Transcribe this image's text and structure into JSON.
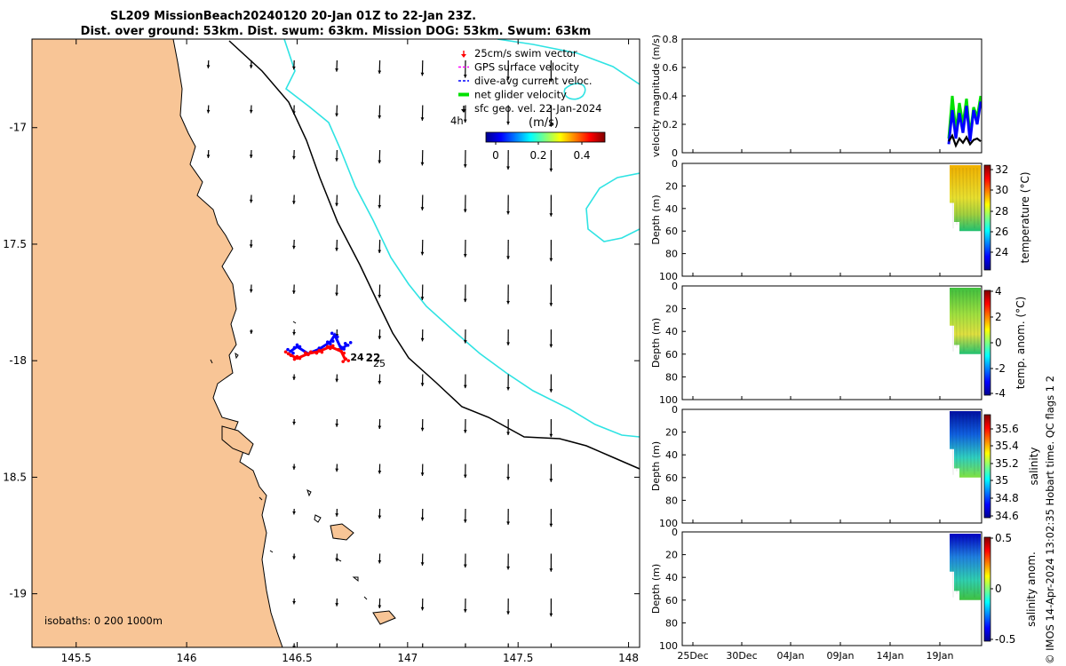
{
  "title": {
    "line1": "SL209 MissionBeach20240120 20-Jan 01Z to 22-Jan 23Z.",
    "line2": "Dist. over ground: 53km. Dist. swum: 63km. Mission DOG: 53km. Swum: 63km"
  },
  "colors": {
    "land": "#f8c596",
    "coast": "#000000",
    "isobath_200": "#000000",
    "isobath_1000": "#2fe3e3",
    "track_red": "#ff0000",
    "track_blue": "#0000ff",
    "glider_green": "#00e000"
  },
  "map": {
    "legend": {
      "items": [
        {
          "label": "25cm/s swim vector",
          "color": "#ff0000",
          "icon": "arrow-icon"
        },
        {
          "label": "GPS surface velocity",
          "color": "#ff00ff",
          "icon": "line-icon"
        },
        {
          "label": "dive-avg current veloc.",
          "color": "#0000ff",
          "icon": "line-icon"
        },
        {
          "label": "net glider velocity",
          "color": "#00e000",
          "icon": "line-icon"
        },
        {
          "label": "sfc geo. vel. 22-Jan-2024",
          "color": "#000000",
          "icon": "arrow-icon"
        }
      ],
      "note": "4h",
      "colorbar_title": "(m/s)",
      "colorbar_ticks": [
        "0",
        "0.2",
        "0.4"
      ]
    },
    "isobath_label": "isobaths: 0   200  1000m",
    "track_labels": [
      "24",
      "22",
      "25"
    ]
  },
  "panels": {
    "time_ticks": [
      "25Dec",
      "30Dec",
      "04Jan",
      "09Jan",
      "14Jan",
      "19Jan"
    ],
    "depth_ticks": [
      "0",
      "20",
      "40",
      "60",
      "80",
      "100"
    ],
    "depth_label": "Depth (m)",
    "vel_label": "velocity magnitude (m/s)",
    "temp": {
      "label": "temperature (°C)",
      "ticks": [
        "32",
        "30",
        "28",
        "26",
        "24"
      ]
    },
    "tanom": {
      "label": "temp. anom. (°C)",
      "ticks": [
        "4",
        "2",
        "0",
        "-2",
        "-4"
      ]
    },
    "sal": {
      "label": "salinity",
      "ticks": [
        "35.6",
        "35.4",
        "35.2",
        "35",
        "34.8",
        "34.6"
      ]
    },
    "sanom": {
      "label": "salinity anom.",
      "ticks": [
        "0.5",
        "0",
        "-0.5"
      ]
    },
    "credit": "© IMOS 14-Apr-2024 13:02:35 Hobart time. QC flags 1  2"
  },
  "chart_data": [
    {
      "type": "scatter",
      "title": "SL209 MissionBeach20240120 20-Jan 01Z to 22-Jan 23Z.",
      "subtitle": "Dist. over ground: 53km. Dist. swum: 63km. Mission DOG: 53km. Swum: 63km",
      "xlim": [
        145.3,
        148.05
      ],
      "ylim": [
        -19.23,
        -16.62
      ],
      "x_ticks": [
        145.5,
        146,
        146.5,
        147,
        147.5,
        148
      ],
      "y_ticks": [
        -17,
        -17.5,
        -18,
        -18.5,
        -19
      ],
      "y_tick_labels": [
        "-17",
        "17.5",
        "-18",
        "18.5",
        "-19"
      ],
      "series": [
        {
          "name": "dive-avg current veloc.",
          "x": [
            146.47,
            146.5,
            146.55,
            146.6,
            146.65,
            146.67,
            146.7,
            146.73
          ],
          "y": [
            -17.96,
            -17.94,
            -17.97,
            -17.95,
            -17.92,
            -17.89,
            -17.95,
            -17.93
          ]
        },
        {
          "name": "25cm/s swim vector",
          "x": [
            146.46,
            146.5,
            146.55,
            146.6,
            146.65,
            146.7,
            146.72
          ],
          "y": [
            -17.97,
            -17.99,
            -17.97,
            -17.96,
            -17.94,
            -17.96,
            -18.0
          ]
        }
      ]
    },
    {
      "type": "line",
      "ylabel": "velocity magnitude (m/s)",
      "ylim": [
        0,
        0.8
      ],
      "y_ticks": [
        0,
        0.2,
        0.4,
        0.6,
        0.8
      ],
      "x_ticks": [
        "25Dec",
        "30Dec",
        "04Jan",
        "09Jan",
        "14Jan",
        "19Jan"
      ],
      "series": [
        {
          "name": "net glider velocity",
          "values": [
            0.1,
            0.4,
            0.15,
            0.35,
            0.2,
            0.38,
            0.12,
            0.32,
            0.25,
            0.4
          ]
        },
        {
          "name": "dive-avg current veloc.",
          "values": [
            0.06,
            0.3,
            0.1,
            0.28,
            0.14,
            0.33,
            0.08,
            0.3,
            0.2,
            0.36
          ]
        },
        {
          "name": "sfc geo. vel.",
          "values": [
            0.08,
            0.12,
            0.05,
            0.1,
            0.07,
            0.11,
            0.06,
            0.09,
            0.1,
            0.08
          ]
        }
      ]
    },
    {
      "type": "heatmap",
      "ylabel": "Depth (m)",
      "ylim": [
        100,
        0
      ],
      "colorbar": "temperature (°C)",
      "clim": [
        22.5,
        32.5
      ]
    },
    {
      "type": "heatmap",
      "ylabel": "Depth (m)",
      "ylim": [
        100,
        0
      ],
      "colorbar": "temp. anom. (°C)",
      "clim": [
        -4,
        4
      ]
    },
    {
      "type": "heatmap",
      "ylabel": "Depth (m)",
      "ylim": [
        100,
        0
      ],
      "colorbar": "salinity",
      "clim": [
        34.55,
        35.75
      ]
    },
    {
      "type": "heatmap",
      "ylabel": "Depth (m)",
      "ylim": [
        100,
        0
      ],
      "colorbar": "salinity anom.",
      "clim": [
        -0.5,
        0.5
      ]
    }
  ]
}
